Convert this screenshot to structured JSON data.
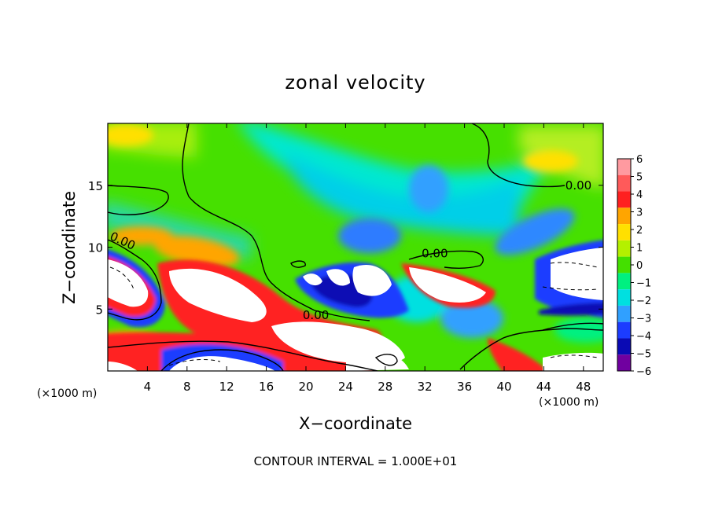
{
  "chart_data": {
    "type": "heatmap",
    "title": "zonal velocity",
    "xlabel": "X−coordinate",
    "ylabel": "Z−coordinate",
    "x_unit_left": "(×1000 m)",
    "x_unit_right": "(×1000 m)",
    "xlim": [
      0,
      50
    ],
    "ylim": [
      0,
      20
    ],
    "x_ticks": [
      4,
      8,
      12,
      16,
      20,
      24,
      28,
      32,
      36,
      40,
      44,
      48
    ],
    "x_tick_labels": [
      "4",
      "8",
      "12",
      "16",
      "20",
      "24",
      "28",
      "32",
      "36",
      "40",
      "44",
      "48"
    ],
    "y_ticks": [
      5,
      10,
      15
    ],
    "y_tick_labels": [
      "5",
      "10",
      "15"
    ],
    "colorbar": {
      "levels": [
        6,
        5,
        4,
        3,
        2,
        1,
        0,
        -1,
        -2,
        -3,
        -4,
        -5,
        -6
      ],
      "labels": [
        "6",
        "5",
        "4",
        "3",
        "2",
        "1",
        "0",
        "−1",
        "−2",
        "−3",
        "−4",
        "−5",
        "−6"
      ],
      "colors": [
        "#ff9aa0",
        "#ff5a5a",
        "#ff2020",
        "#ffa500",
        "#ffe000",
        "#b4f000",
        "#44e000",
        "#00f080",
        "#00e0e0",
        "#30a0ff",
        "#1c3cff",
        "#0a0ab4",
        "#7000a0"
      ]
    },
    "contour_labels": [
      {
        "text": "0.00",
        "x": 1.5,
        "y": 10.5
      },
      {
        "text": "0.00",
        "x": 21.0,
        "y": 4.5
      },
      {
        "text": "0.00",
        "x": 33.0,
        "y": 9.5
      },
      {
        "text": "0.00",
        "x": 47.5,
        "y": 15.0
      }
    ],
    "grid": false,
    "footer": "CONTOUR INTERVAL = 1.000E+01"
  }
}
